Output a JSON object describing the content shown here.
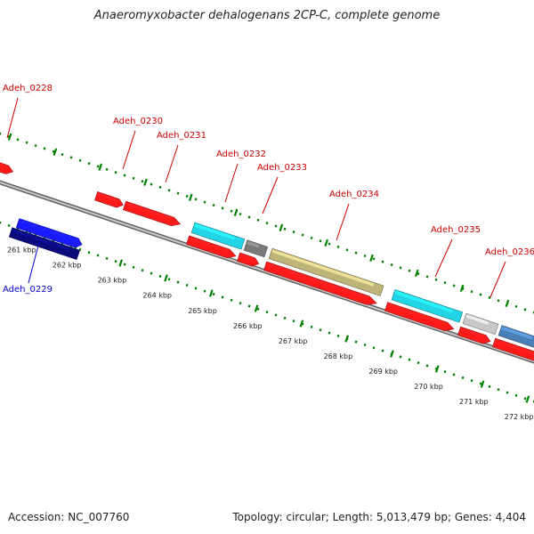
{
  "title": "Anaeromyxobacter dehalogenans 2CP-C, complete genome",
  "footer": {
    "accession": "Accession: NC_007760",
    "summary": "Topology: circular; Length: 5,013,479 bp; Genes: 4,404"
  },
  "colors": {
    "plus_label": "#cc0000",
    "minus_label": "#0000cc",
    "backbone": "#808080",
    "ticks": "#008000"
  },
  "kbp_ticks": [
    "261 kbp",
    "262 kbp",
    "263 kbp",
    "264 kbp",
    "265 kbp",
    "266 kbp",
    "267 kbp",
    "268 kbp",
    "269 kbp",
    "270 kbp",
    "271 kbp",
    "272 kbp"
  ],
  "gene_labels": [
    {
      "text": "Adeh_0228",
      "strand": "plus"
    },
    {
      "text": "Adeh_0229",
      "strand": "minus"
    },
    {
      "text": "Adeh_0230",
      "strand": "plus"
    },
    {
      "text": "Adeh_0231",
      "strand": "plus"
    },
    {
      "text": "Adeh_0232",
      "strand": "plus"
    },
    {
      "text": "Adeh_0233",
      "strand": "plus"
    },
    {
      "text": "Adeh_0234",
      "strand": "plus"
    },
    {
      "text": "Adeh_0235",
      "strand": "plus"
    },
    {
      "text": "Adeh_0236",
      "strand": "plus"
    }
  ],
  "features": {
    "blue": "#1a1aff",
    "navy": "#0a0a7a",
    "red": "#ff1a1a",
    "cyan": "#22d4e6",
    "gray": "#7a7a7a",
    "khaki": "#bdb47a",
    "lightgray": "#c8c8c8",
    "steelblue": "#4a7fb5"
  }
}
